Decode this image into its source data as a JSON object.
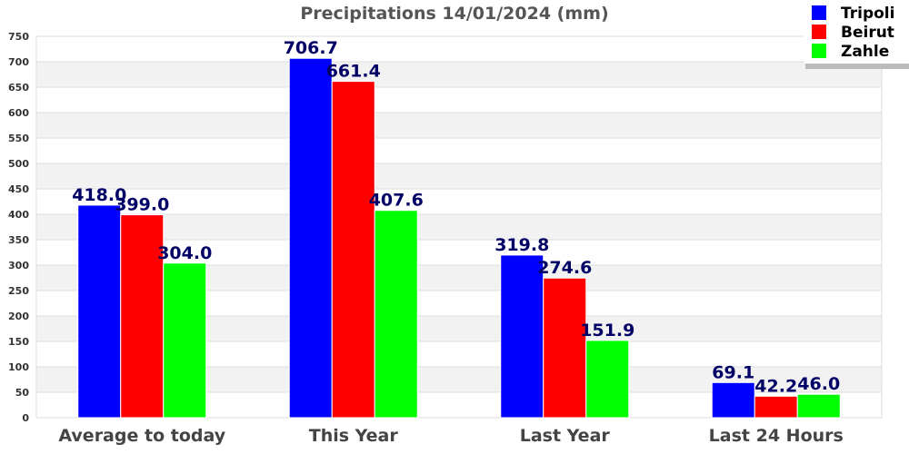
{
  "chart_data": {
    "type": "bar",
    "title": "Precipitations 14/01/2024 (mm)",
    "xlabel": "",
    "ylabel": "",
    "categories": [
      "Average to today",
      "This Year",
      "Last Year",
      "Last 24 Hours"
    ],
    "series": [
      {
        "name": "Tripoli",
        "color": "#0000ff",
        "values": [
          418.0,
          706.7,
          319.8,
          69.1
        ],
        "labels": [
          "418.0",
          "706.7",
          "319.8",
          "69.1"
        ]
      },
      {
        "name": "Beirut",
        "color": "#ff0000",
        "values": [
          399.0,
          661.4,
          274.6,
          42.2
        ],
        "labels": [
          "399.0",
          "661.4",
          "274.6",
          "42.2"
        ]
      },
      {
        "name": "Zahle",
        "color": "#00ff00",
        "values": [
          304.0,
          407.6,
          151.9,
          46.0
        ],
        "labels": [
          "304.0",
          "407.6",
          "151.9",
          "46.0"
        ]
      }
    ],
    "ylim": [
      0,
      750
    ],
    "yticks": [
      0,
      50,
      100,
      150,
      200,
      250,
      300,
      350,
      400,
      450,
      500,
      550,
      600,
      650,
      700,
      750
    ],
    "grid": true,
    "legend": "top-right"
  }
}
